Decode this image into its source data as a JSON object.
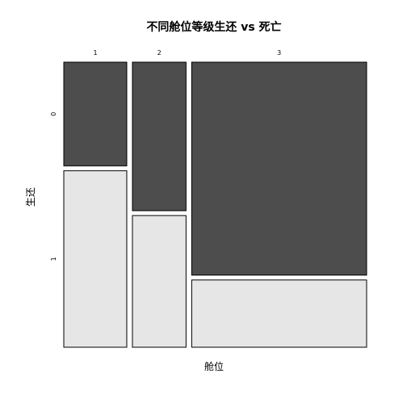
{
  "chart_data": {
    "type": "mosaic",
    "title": "不同舱位等级生还 vs 死亡",
    "xlabel": "舱位",
    "ylabel": "生还",
    "categories": [
      "1",
      "2",
      "3"
    ],
    "survival_levels": [
      "0",
      "1"
    ],
    "column_proportions": [
      0.216,
      0.184,
      0.6
    ],
    "series": [
      {
        "level": "0",
        "proportions": [
          0.37,
          0.53,
          0.76
        ],
        "color": "#4d4d4d"
      },
      {
        "level": "1",
        "proportions": [
          0.63,
          0.47,
          0.24
        ],
        "color": "#e6e6e6"
      }
    ]
  }
}
